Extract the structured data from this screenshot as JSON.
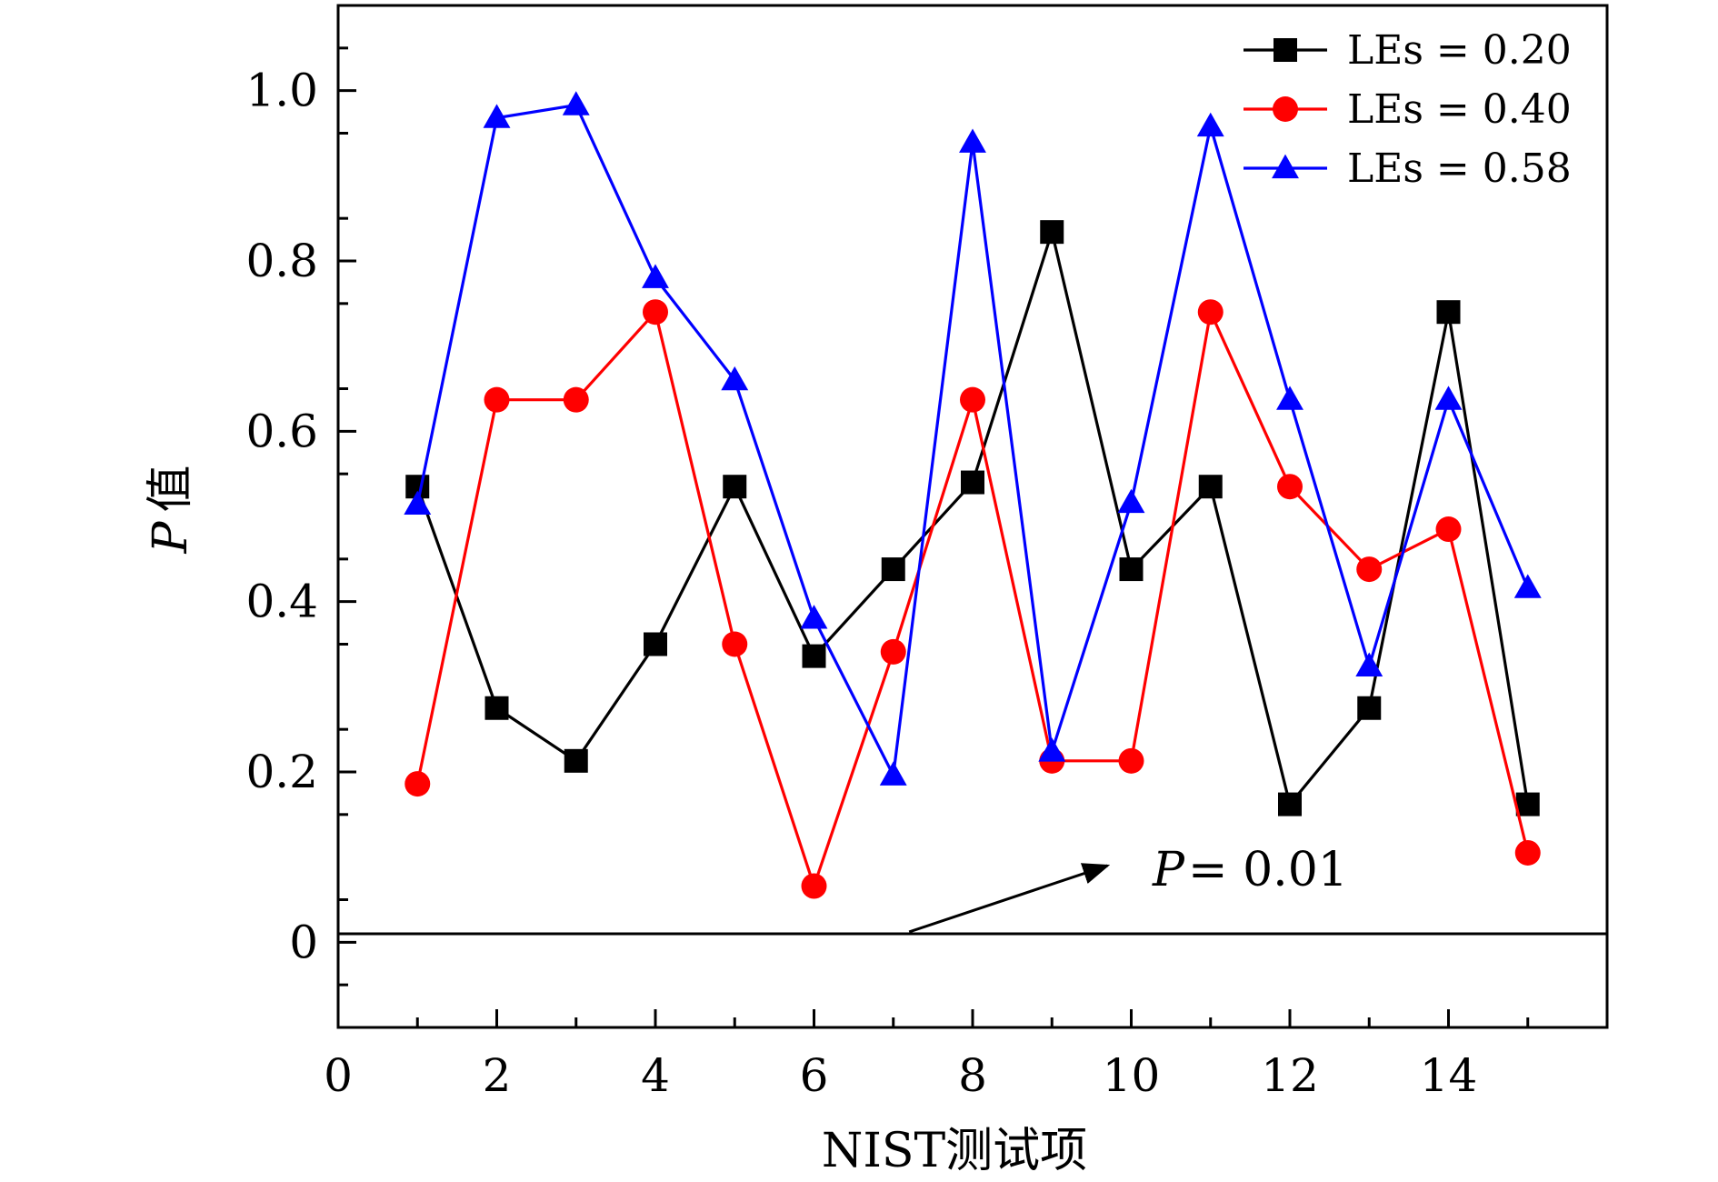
{
  "chart_data": {
    "type": "line",
    "xlabel": "NIST测试项",
    "ylabel_var": "P",
    "ylabel_suffix": "值",
    "xlim": [
      0,
      16
    ],
    "ylim": [
      -0.1,
      1.1
    ],
    "xticks": [
      0,
      2,
      4,
      6,
      8,
      10,
      12,
      14
    ],
    "yticks": [
      0,
      0.2,
      0.4,
      0.6,
      0.8,
      1.0
    ],
    "ytick_labels": [
      "0",
      "0.2",
      "0.4",
      "0.6",
      "0.8",
      "1.0"
    ],
    "x": [
      1,
      2,
      3,
      4,
      5,
      6,
      7,
      8,
      9,
      10,
      11,
      12,
      13,
      14,
      15
    ],
    "series": [
      {
        "name": "LEs = 0.20",
        "color": "#000000",
        "marker": "square",
        "values": [
          0.535,
          0.275,
          0.213,
          0.35,
          0.535,
          0.336,
          0.438,
          0.54,
          0.834,
          0.438,
          0.535,
          0.162,
          0.275,
          0.74,
          0.162
        ]
      },
      {
        "name": "LEs = 0.40",
        "color": "#ff0000",
        "marker": "circle",
        "values": [
          0.186,
          0.637,
          0.637,
          0.74,
          0.35,
          0.066,
          0.341,
          0.637,
          0.213,
          0.213,
          0.74,
          0.535,
          0.438,
          0.485,
          0.105
        ]
      },
      {
        "name": "LEs = 0.58",
        "color": "#0000ff",
        "marker": "triangle",
        "values": [
          0.514,
          0.968,
          0.983,
          0.78,
          0.66,
          0.38,
          0.196,
          0.939,
          0.224,
          0.516,
          0.958,
          0.637,
          0.324,
          0.637,
          0.416
        ]
      }
    ],
    "reference_line": {
      "y": 0.01,
      "label_var": "P",
      "label_value": "= 0.01"
    },
    "legend": "top-right",
    "grid": false
  }
}
